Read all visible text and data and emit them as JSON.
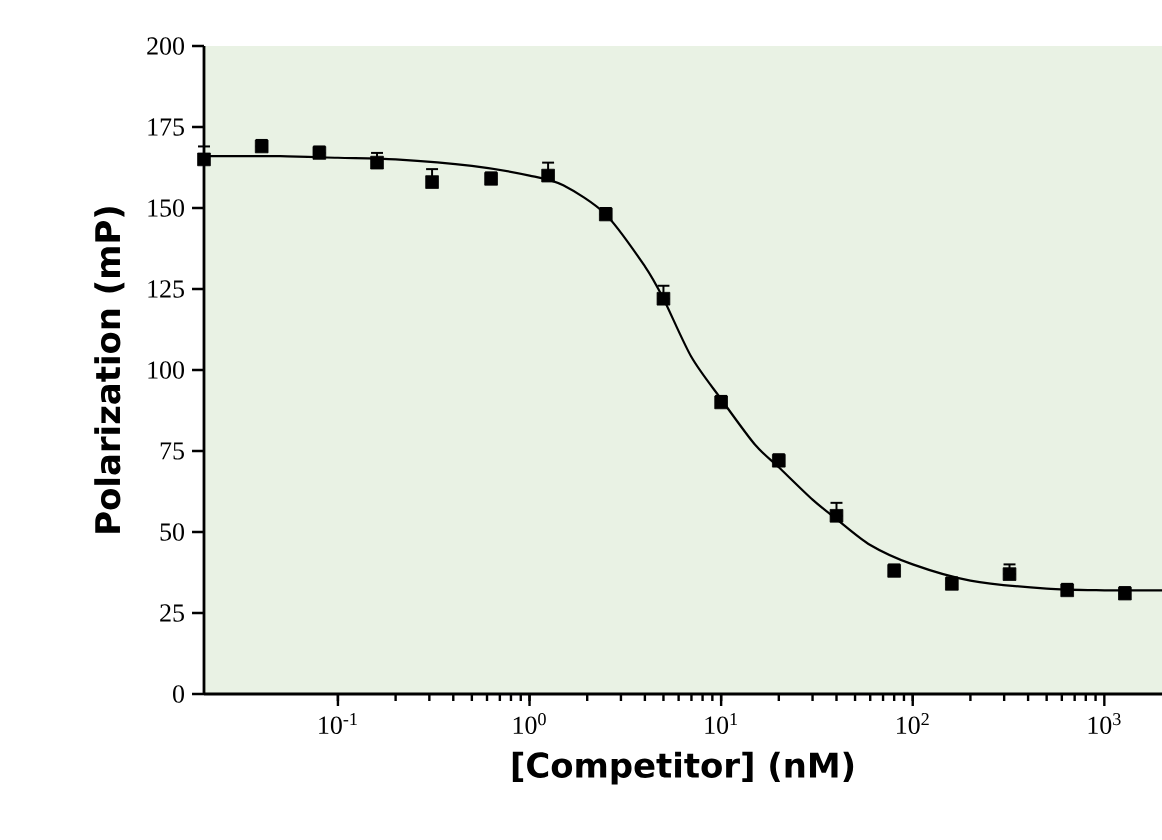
{
  "chart_data": {
    "type": "scatter",
    "xlabel": "[Competitor] (nM)",
    "ylabel": "Polarization (mP)",
    "log": "x",
    "grid": false,
    "xlim": [
      0.02,
      2000
    ],
    "ylim": [
      0,
      200
    ],
    "xticks": [
      {
        "value": 0.1,
        "label": "10$^{-1}$"
      },
      {
        "value": 1,
        "label": "10$^{0}$"
      },
      {
        "value": 10,
        "label": "10$^{1}$"
      },
      {
        "value": 100,
        "label": "10$^{2}$"
      },
      {
        "value": 1000,
        "label": "10$^{3}$"
      }
    ],
    "yticks": [
      0,
      25,
      50,
      75,
      100,
      125,
      150,
      175,
      200
    ],
    "series": [
      {
        "color": "#000000",
        "marker": "square",
        "x": [
          0.02,
          0.04,
          0.08,
          0.16,
          0.31,
          0.63,
          1.25,
          2.5,
          5,
          10,
          20,
          40,
          80,
          160,
          320,
          640,
          1280
        ],
        "values": [
          165,
          169,
          167,
          164,
          158,
          159,
          160,
          148,
          122,
          90,
          72,
          55,
          38,
          34,
          37,
          32,
          31
        ],
        "errors": [
          [
            165,
            169
          ],
          [
            169,
            171
          ],
          [
            167,
            169
          ],
          [
            164,
            167
          ],
          [
            158,
            162
          ],
          [
            159,
            161
          ],
          [
            160,
            164
          ],
          [
            148,
            150
          ],
          [
            122,
            126
          ],
          [
            90,
            92
          ],
          [
            72,
            74
          ],
          [
            55,
            59
          ],
          [
            38,
            40
          ],
          [
            34,
            36
          ],
          [
            37,
            40
          ],
          [
            32,
            34
          ],
          [
            31,
            33
          ]
        ]
      },
      {
        "type": "line",
        "color": "#000000",
        "marker": "none",
        "line_style": "solid",
        "x": [
          0.02,
          0.05,
          0.1,
          0.2,
          0.5,
          1,
          1.5,
          2.5,
          4,
          5,
          7,
          10,
          15,
          20,
          30,
          40,
          60,
          100,
          200,
          500,
          1000,
          2000
        ],
        "values": [
          166,
          166,
          165.5,
          165,
          163,
          160,
          157,
          148,
          132,
          122,
          104,
          91,
          77,
          70,
          60,
          54,
          46,
          40,
          35,
          32.5,
          32,
          32
        ]
      }
    ]
  }
}
